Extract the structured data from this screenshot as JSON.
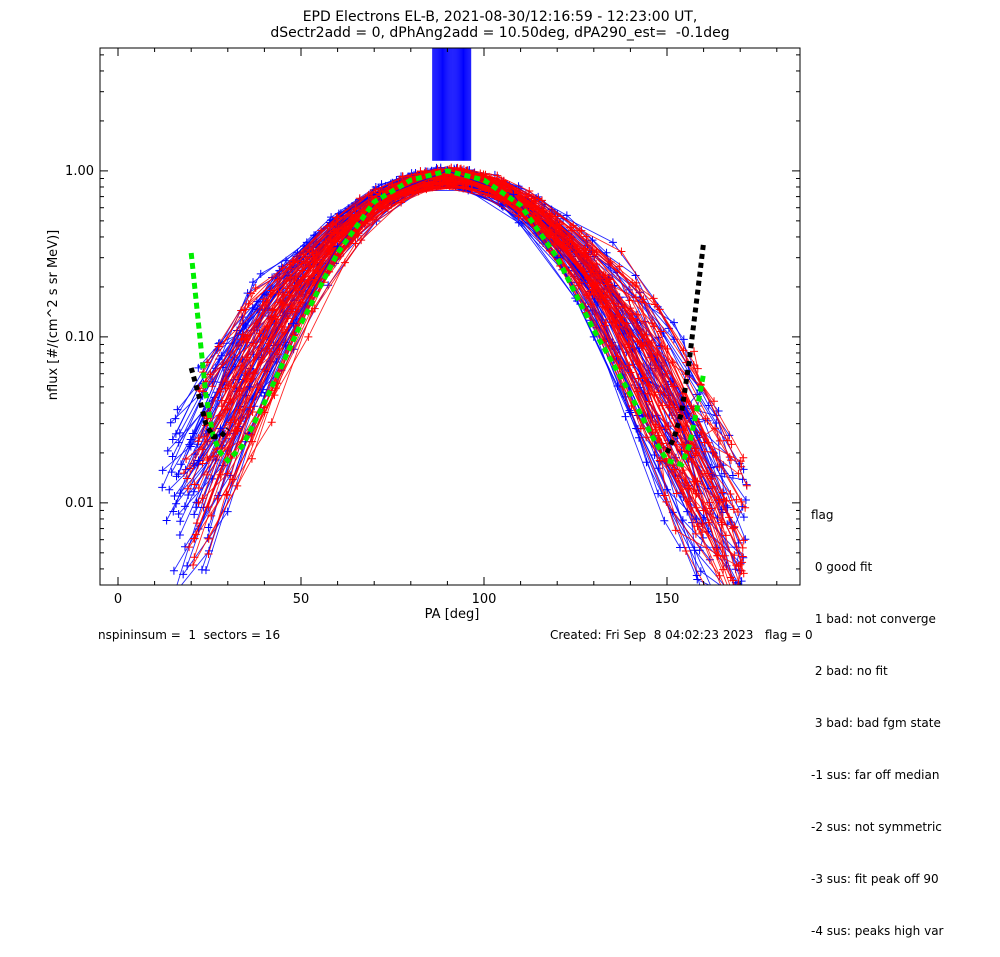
{
  "chart_data": {
    "type": "line",
    "title_line1": "EPD Electrons EL-B, 2021-08-30/12:16:59 - 12:23:00 UT,",
    "title_line2": "dSectr2add = 0, dPhAng2add = 10.50deg, dPA290_est=  -0.1deg",
    "xlabel": "PA [deg]",
    "ylabel": "nflux [#/(cm^2 s sr MeV)]",
    "xlim": [
      -5,
      185
    ],
    "ylim": [
      0.0032,
      5.5
    ],
    "yscale": "log",
    "x_ticks": [
      0,
      50,
      100,
      150
    ],
    "x_tick_labels": [
      "0",
      "50",
      "100",
      "150"
    ],
    "y_ticks": [
      0.01,
      0.1,
      1.0
    ],
    "y_tick_labels": [
      "0.01",
      "0.10",
      "1.00"
    ],
    "colors": {
      "blue": "#0000ff",
      "red": "#ff0000",
      "green": "#00ee00",
      "black": "#000000"
    },
    "curve_count_per_color": 60,
    "representative_series": [
      {
        "color": "blue",
        "pa": [
          14,
          22,
          28,
          36,
          48,
          60,
          72,
          90,
          108,
          120,
          130,
          140,
          150,
          158
        ],
        "values": [
          0.012,
          0.018,
          0.028,
          0.05,
          0.12,
          0.35,
          0.7,
          1.0,
          0.72,
          0.3,
          0.1,
          0.035,
          0.012,
          0.008
        ]
      },
      {
        "color": "red",
        "pa": [
          22,
          30,
          40,
          52,
          62,
          74,
          90,
          106,
          118,
          128,
          138,
          148,
          160,
          168
        ],
        "values": [
          0.01,
          0.015,
          0.035,
          0.1,
          0.28,
          0.65,
          0.95,
          0.75,
          0.33,
          0.14,
          0.05,
          0.018,
          0.009,
          0.007
        ]
      }
    ],
    "fit_green": {
      "pa": [
        20,
        22,
        24,
        26,
        28,
        30,
        34,
        40,
        50,
        60,
        70,
        80,
        90,
        100,
        110,
        120,
        130,
        140,
        146,
        150,
        154,
        156,
        158,
        160
      ],
      "values": [
        0.32,
        0.12,
        0.045,
        0.025,
        0.02,
        0.018,
        0.022,
        0.04,
        0.12,
        0.32,
        0.65,
        0.88,
        1.0,
        0.88,
        0.62,
        0.3,
        0.11,
        0.045,
        0.025,
        0.018,
        0.017,
        0.022,
        0.035,
        0.06
      ]
    },
    "fit_black": {
      "pa": [
        20,
        22,
        24,
        26,
        28,
        30
      ],
      "values": [
        0.065,
        0.045,
        0.03,
        0.025,
        0.025,
        0.028
      ],
      "pa2": [
        150,
        152,
        154,
        156,
        158,
        160
      ],
      "values2": [
        0.02,
        0.025,
        0.035,
        0.07,
        0.16,
        0.37
      ]
    },
    "legend": {
      "placement": "right",
      "title": "flag",
      "entries": [
        " 0 good fit",
        " 1 bad: not converge",
        " 2 bad: no fit",
        " 3 bad: bad fgm state",
        "-1 sus: far off median",
        "-2 sus: not symmetric",
        "-3 sus: fit peak off 90",
        "-4 sus: peaks high var"
      ]
    }
  },
  "footer": {
    "left": "nspininsum =  1  sectors = 16",
    "right": "Created: Fri Sep  8 04:02:23 2023   flag = 0"
  }
}
